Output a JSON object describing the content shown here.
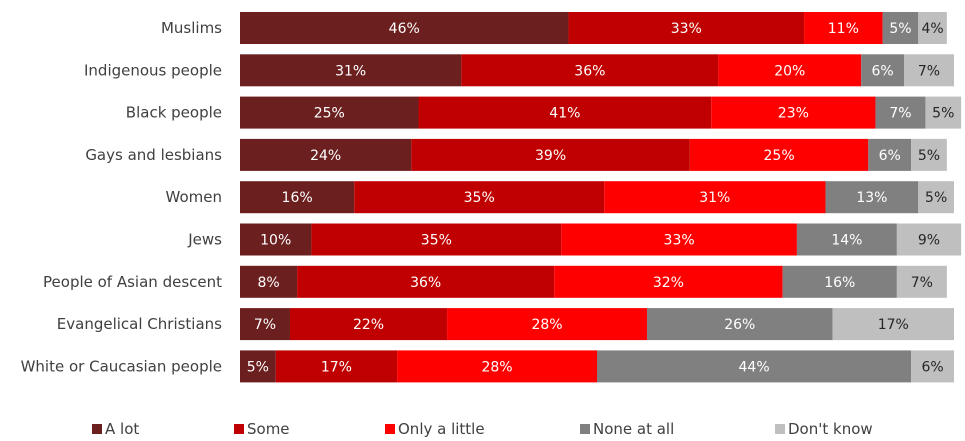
{
  "chart_data": {
    "type": "bar",
    "orientation": "horizontal",
    "stacked": true,
    "title": "",
    "xlabel": "",
    "ylabel": "",
    "xlim": [
      0,
      100
    ],
    "grid": false,
    "legend_position": "bottom",
    "categories": [
      "Muslims",
      "Indigenous people",
      "Black people",
      "Gays and lesbians",
      "Women",
      "Jews",
      "People of Asian descent",
      "Evangelical Christians",
      "White or Caucasian people"
    ],
    "series": [
      {
        "name": "A lot",
        "color": "#6b1f1f",
        "values": [
          46,
          31,
          25,
          24,
          16,
          10,
          8,
          7,
          5
        ]
      },
      {
        "name": "Some",
        "color": "#c00000",
        "values": [
          33,
          36,
          41,
          39,
          35,
          35,
          36,
          22,
          17
        ]
      },
      {
        "name": "Only a little",
        "color": "#ff0000",
        "values": [
          11,
          20,
          23,
          25,
          31,
          33,
          32,
          28,
          28
        ]
      },
      {
        "name": "None at all",
        "color": "#808080",
        "values": [
          5,
          6,
          7,
          6,
          13,
          14,
          16,
          26,
          44
        ]
      },
      {
        "name": "Don't know",
        "color": "#bfbfbf",
        "values": [
          4,
          7,
          5,
          5,
          5,
          9,
          7,
          17,
          6
        ]
      }
    ],
    "value_suffix": "%"
  }
}
